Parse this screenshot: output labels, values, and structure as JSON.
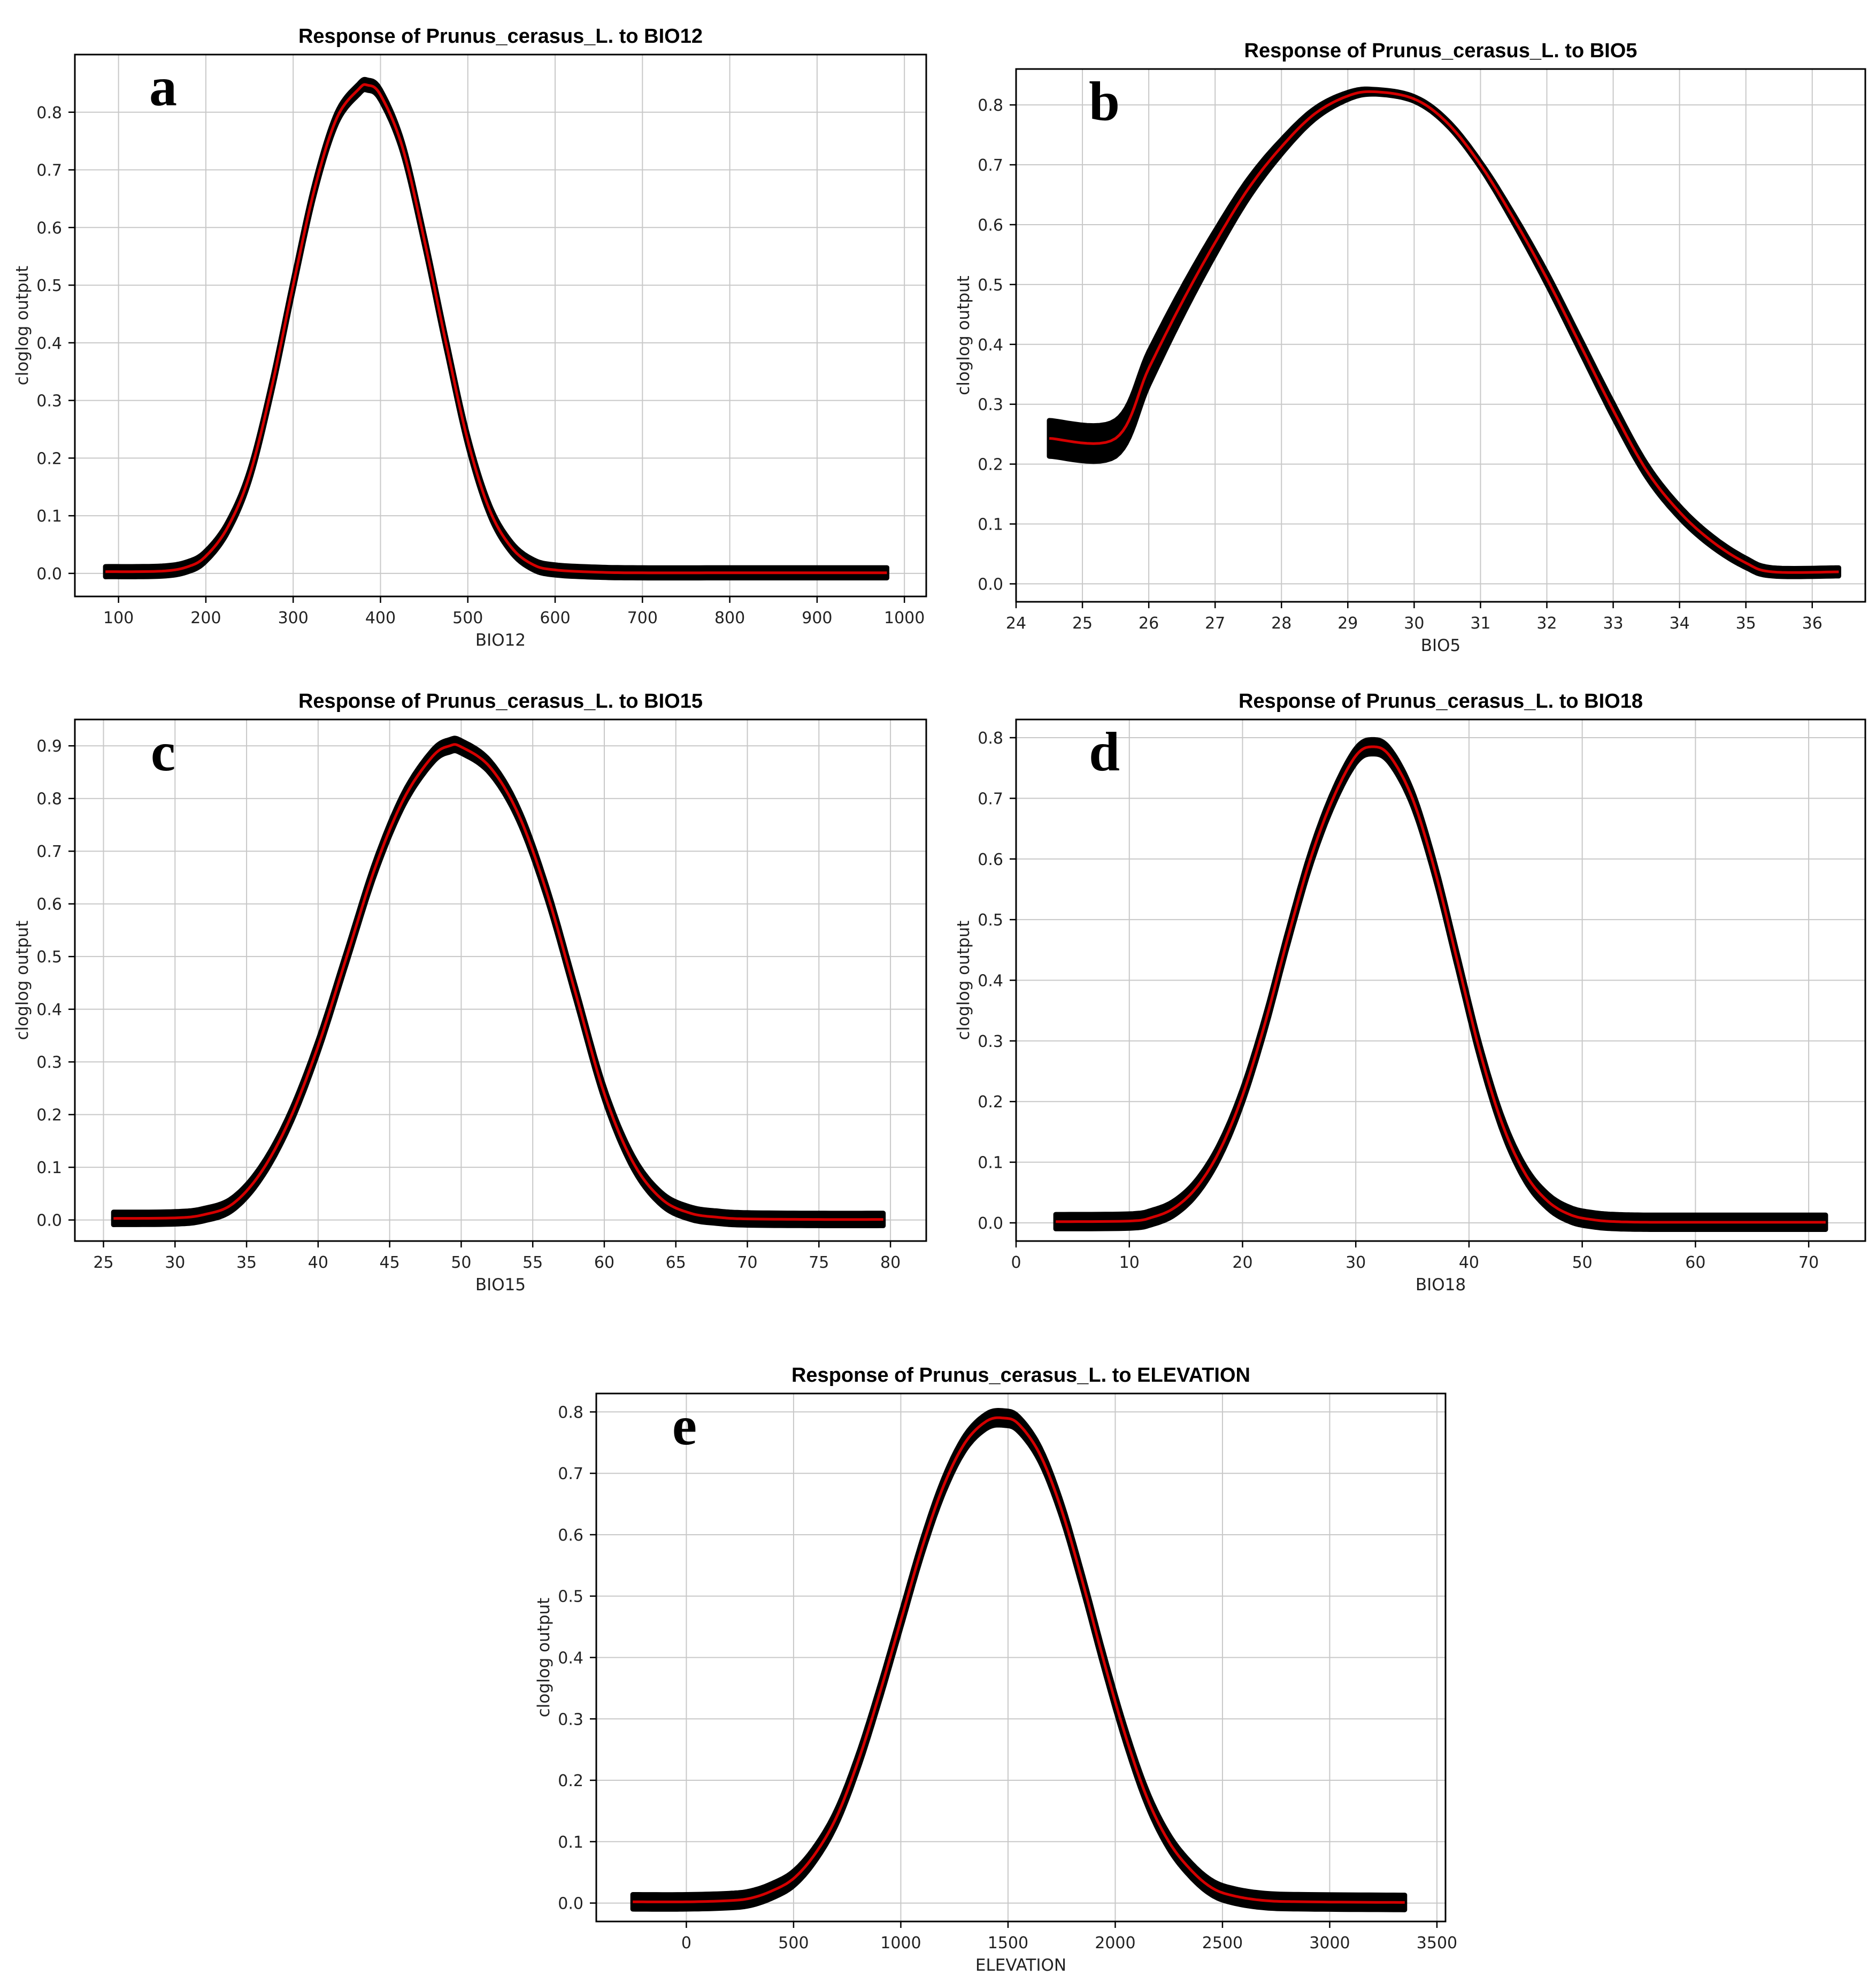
{
  "chart_data": [
    {
      "type": "line",
      "panel_letter": "a",
      "title": "Response of Prunus_cerasus_L. to BIO12",
      "xlabel": "BIO12",
      "ylabel": "cloglog output",
      "xlim": [
        50,
        1025
      ],
      "ylim": [
        -0.04,
        0.9
      ],
      "xticks": [
        100,
        200,
        300,
        400,
        500,
        600,
        700,
        800,
        900,
        1000
      ],
      "yticks": [
        0.0,
        0.1,
        0.2,
        0.3,
        0.4,
        0.5,
        0.6,
        0.7,
        0.8
      ],
      "ytick_labels": [
        "0.0",
        "0.1",
        "0.2",
        "0.3",
        "0.4",
        "0.5",
        "0.6",
        "0.7",
        "0.8"
      ],
      "series": [
        {
          "name": "mean response",
          "color": "#d40000",
          "x": [
            85,
            150,
            180,
            200,
            225,
            250,
            275,
            300,
            325,
            350,
            375,
            385,
            400,
            425,
            450,
            475,
            500,
            525,
            550,
            575,
            600,
            650,
            700,
            800,
            900,
            980
          ],
          "y": [
            0.003,
            0.004,
            0.012,
            0.03,
            0.08,
            0.17,
            0.32,
            0.5,
            0.67,
            0.79,
            0.84,
            0.847,
            0.83,
            0.74,
            0.58,
            0.4,
            0.23,
            0.11,
            0.045,
            0.015,
            0.006,
            0.002,
            0.001,
            0.001,
            0.001,
            0.001
          ]
        },
        {
          "name": "confidence band",
          "color": "#000000",
          "band": 0.009
        }
      ]
    },
    {
      "type": "line",
      "panel_letter": "b",
      "title": "Response of Prunus_cerasus_L. to BIO5",
      "xlabel": "BIO5",
      "ylabel": "cloglog output",
      "xlim": [
        24,
        36.8
      ],
      "ylim": [
        -0.03,
        0.86
      ],
      "xticks": [
        24,
        25,
        26,
        27,
        28,
        29,
        30,
        31,
        32,
        33,
        34,
        35,
        36
      ],
      "yticks": [
        0.0,
        0.1,
        0.2,
        0.3,
        0.4,
        0.5,
        0.6,
        0.7,
        0.8
      ],
      "ytick_labels": [
        "0.0",
        "0.1",
        "0.2",
        "0.3",
        "0.4",
        "0.5",
        "0.6",
        "0.7",
        "0.8"
      ],
      "series": [
        {
          "name": "mean response",
          "color": "#d40000",
          "x": [
            24.5,
            25.5,
            26.0,
            26.5,
            27.0,
            27.5,
            28.0,
            28.5,
            29.0,
            29.4,
            30.0,
            30.5,
            31.0,
            31.5,
            32.0,
            32.5,
            33.0,
            33.5,
            34.0,
            34.5,
            35.0,
            35.4,
            36.4
          ],
          "y": [
            0.243,
            0.243,
            0.36,
            0.47,
            0.57,
            0.66,
            0.73,
            0.785,
            0.815,
            0.822,
            0.81,
            0.77,
            0.7,
            0.61,
            0.51,
            0.4,
            0.29,
            0.19,
            0.12,
            0.07,
            0.035,
            0.02,
            0.02
          ]
        },
        {
          "name": "confidence band",
          "color": "#000000",
          "band_x": [
            24.5,
            25.5,
            26.0,
            27.0,
            28.0,
            29.0,
            29.4,
            30.0,
            31.0,
            32.0,
            33.0,
            34.0,
            35.0,
            35.4,
            36.4
          ],
          "band_halfwidth": [
            0.03,
            0.03,
            0.028,
            0.02,
            0.012,
            0.006,
            0.004,
            0.004,
            0.005,
            0.01,
            0.012,
            0.01,
            0.008,
            0.007,
            0.007
          ]
        }
      ]
    },
    {
      "type": "line",
      "panel_letter": "c",
      "title": "Response of Prunus_cerasus_L. to BIO15",
      "xlabel": "BIO15",
      "ylabel": "cloglog output",
      "xlim": [
        23,
        82.5
      ],
      "ylim": [
        -0.04,
        0.95
      ],
      "xticks": [
        25,
        30,
        35,
        40,
        45,
        50,
        55,
        60,
        65,
        70,
        75,
        80
      ],
      "yticks": [
        0.0,
        0.1,
        0.2,
        0.3,
        0.4,
        0.5,
        0.6,
        0.7,
        0.8,
        0.9
      ],
      "ytick_labels": [
        "0.0",
        "0.1",
        "0.2",
        "0.3",
        "0.4",
        "0.5",
        "0.6",
        "0.7",
        "0.8",
        "0.9"
      ],
      "series": [
        {
          "name": "mean response",
          "color": "#d40000",
          "x": [
            25.7,
            30,
            32,
            34,
            36,
            38,
            40,
            42,
            44,
            46,
            48,
            49.2,
            50,
            52,
            54,
            56,
            58,
            60,
            62,
            64,
            66,
            68,
            70,
            75,
            79.5
          ],
          "y": [
            0.003,
            0.004,
            0.01,
            0.03,
            0.09,
            0.19,
            0.33,
            0.5,
            0.67,
            0.8,
            0.88,
            0.9,
            0.898,
            0.86,
            0.77,
            0.62,
            0.43,
            0.24,
            0.11,
            0.04,
            0.013,
            0.005,
            0.002,
            0.001,
            0.001
          ]
        },
        {
          "name": "confidence band",
          "color": "#000000",
          "band": 0.012
        }
      ]
    },
    {
      "type": "line",
      "panel_letter": "d",
      "title": "Response of Prunus_cerasus_L. to BIO18",
      "xlabel": "BIO18",
      "ylabel": "cloglog output",
      "xlim": [
        0,
        75
      ],
      "ylim": [
        -0.03,
        0.83
      ],
      "xticks": [
        0,
        10,
        20,
        30,
        40,
        50,
        60,
        70
      ],
      "yticks": [
        0.0,
        0.1,
        0.2,
        0.3,
        0.4,
        0.5,
        0.6,
        0.7,
        0.8
      ],
      "ytick_labels": [
        "0.0",
        "0.1",
        "0.2",
        "0.3",
        "0.4",
        "0.5",
        "0.6",
        "0.7",
        "0.8"
      ],
      "series": [
        {
          "name": "mean response",
          "color": "#d40000",
          "x": [
            3.5,
            10,
            12,
            14,
            16,
            18,
            20,
            22,
            24,
            26,
            28,
            30,
            31.5,
            33,
            35,
            37,
            39,
            41,
            43,
            45,
            47,
            49,
            51,
            53,
            56,
            60,
            71.5
          ],
          "y": [
            0.002,
            0.003,
            0.009,
            0.025,
            0.06,
            0.12,
            0.21,
            0.33,
            0.47,
            0.6,
            0.7,
            0.77,
            0.785,
            0.77,
            0.7,
            0.58,
            0.43,
            0.28,
            0.16,
            0.08,
            0.035,
            0.013,
            0.005,
            0.002,
            0.001,
            0.001,
            0.001
          ]
        },
        {
          "name": "confidence band",
          "color": "#000000",
          "band": 0.012
        }
      ]
    },
    {
      "type": "line",
      "panel_letter": "e",
      "title": "Response of Prunus_cerasus_L. to ELEVATION",
      "xlabel": "ELEVATION",
      "ylabel": "cloglog output",
      "xlim": [
        -420,
        3540
      ],
      "ylim": [
        -0.03,
        0.83
      ],
      "xticks": [
        0,
        500,
        1000,
        1500,
        2000,
        2500,
        3000,
        3500
      ],
      "yticks": [
        0.0,
        0.1,
        0.2,
        0.3,
        0.4,
        0.5,
        0.6,
        0.7,
        0.8
      ],
      "ytick_labels": [
        "0.0",
        "0.1",
        "0.2",
        "0.3",
        "0.4",
        "0.5",
        "0.6",
        "0.7",
        "0.8"
      ],
      "series": [
        {
          "name": "mean response",
          "color": "#d40000",
          "x": [
            -250,
            0,
            200,
            300,
            400,
            500,
            600,
            700,
            800,
            900,
            1000,
            1100,
            1200,
            1300,
            1400,
            1480,
            1550,
            1650,
            1750,
            1850,
            1950,
            2050,
            2150,
            2250,
            2350,
            2450,
            2550,
            2700,
            2900,
            3350
          ],
          "y": [
            0.002,
            0.002,
            0.004,
            0.008,
            0.02,
            0.04,
            0.08,
            0.14,
            0.23,
            0.34,
            0.46,
            0.58,
            0.68,
            0.75,
            0.785,
            0.79,
            0.78,
            0.73,
            0.64,
            0.52,
            0.39,
            0.27,
            0.17,
            0.1,
            0.055,
            0.025,
            0.012,
            0.004,
            0.002,
            0.001
          ]
        },
        {
          "name": "confidence band",
          "color": "#000000",
          "band": 0.012
        }
      ]
    }
  ]
}
